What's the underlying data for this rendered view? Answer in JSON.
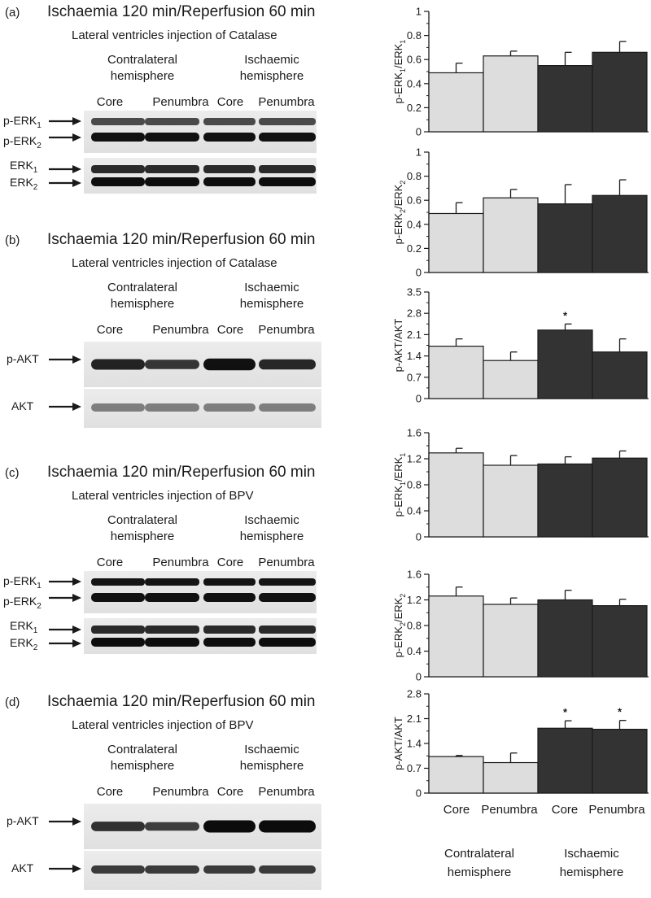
{
  "figure_panels": [
    {
      "letter": "(a)",
      "title": "Ischaemia 120 min/Reperfusion 60 min",
      "injection": "Lateral ventricles injection of Catalase",
      "blots": [
        "p-ERK1 / p-ERK2",
        "ERK1 / ERK2"
      ]
    },
    {
      "letter": "(b)",
      "title": "Ischaemia 120 min/Reperfusion 60 min",
      "injection": "Lateral ventricles injection of Catalase",
      "blots": [
        "p-AKT",
        "AKT"
      ]
    },
    {
      "letter": "(c)",
      "title": "Ischaemia 120 min/Reperfusion 60 min",
      "injection": "Lateral ventricles injection of BPV",
      "blots": [
        "p-ERK1 / p-ERK2",
        "ERK1 / ERK2"
      ]
    },
    {
      "letter": "(d)",
      "title": "Ischaemia 120 min/Reperfusion 60 min",
      "injection": "Lateral ventricles injection of BPV",
      "blots": [
        "p-AKT",
        "AKT"
      ]
    }
  ],
  "groups": {
    "contralateral": [
      "Contralateral",
      "hemisphere"
    ],
    "ischaemic": [
      "Ischaemic",
      "hemisphere"
    ]
  },
  "lanes": [
    "Core",
    "Penumbra",
    "Core",
    "Penumbra"
  ],
  "bands": {
    "p_erk": {
      "main": "p-ERK",
      "sub1": "1",
      "sub2": "2"
    },
    "erk": {
      "main": "ERK",
      "sub1": "1",
      "sub2": "2"
    },
    "p_akt": "p-AKT",
    "akt": "AKT"
  },
  "colors": {
    "contralateral_bar": "#dddddd",
    "ischaemic_bar": "#333333",
    "outline": "#1a1a1a"
  },
  "chart_data": [
    {
      "type": "bar",
      "ylabel": "p-ERK1/ERK1",
      "ylim": [
        0,
        1
      ],
      "yticks": [
        0,
        0.2,
        0.4,
        0.6,
        0.8,
        1
      ],
      "categories": [
        "Core",
        "Penumbra",
        "Core",
        "Penumbra"
      ],
      "values": [
        0.49,
        0.63,
        0.55,
        0.66
      ],
      "errors": [
        0.08,
        0.04,
        0.11,
        0.09
      ],
      "significant": [
        false,
        false,
        false,
        false
      ]
    },
    {
      "type": "bar",
      "ylabel": "p-ERK2/ERK2",
      "ylim": [
        0,
        1
      ],
      "yticks": [
        0,
        0.2,
        0.4,
        0.6,
        0.8,
        1
      ],
      "categories": [
        "Core",
        "Penumbra",
        "Core",
        "Penumbra"
      ],
      "values": [
        0.49,
        0.62,
        0.57,
        0.64
      ],
      "errors": [
        0.09,
        0.07,
        0.16,
        0.13
      ],
      "significant": [
        false,
        false,
        false,
        false
      ]
    },
    {
      "type": "bar",
      "ylabel": "p-AKT/AKT",
      "ylim": [
        0,
        3.5
      ],
      "yticks": [
        0,
        0.7,
        1.4,
        2.1,
        2.8,
        3.5
      ],
      "categories": [
        "Core",
        "Penumbra",
        "Core",
        "Penumbra"
      ],
      "values": [
        1.72,
        1.25,
        2.25,
        1.53
      ],
      "errors": [
        0.24,
        0.28,
        0.2,
        0.43
      ],
      "significant": [
        false,
        false,
        true,
        false
      ]
    },
    {
      "type": "bar",
      "ylabel": "p-ERK1/ERK1",
      "ylim": [
        0,
        1.6
      ],
      "yticks": [
        0,
        0.4,
        0.8,
        1.2,
        1.6
      ],
      "categories": [
        "Core",
        "Penumbra",
        "Core",
        "Penumbra"
      ],
      "values": [
        1.29,
        1.1,
        1.12,
        1.21
      ],
      "errors": [
        0.07,
        0.15,
        0.11,
        0.11
      ],
      "significant": [
        false,
        false,
        false,
        false
      ]
    },
    {
      "type": "bar",
      "ylabel": "p-ERK2/ERK2",
      "ylim": [
        0,
        1.6
      ],
      "yticks": [
        0,
        0.4,
        0.8,
        1.2,
        1.6
      ],
      "categories": [
        "Core",
        "Penumbra",
        "Core",
        "Penumbra"
      ],
      "values": [
        1.26,
        1.13,
        1.2,
        1.11
      ],
      "errors": [
        0.14,
        0.1,
        0.15,
        0.1
      ],
      "significant": [
        false,
        false,
        false,
        false
      ]
    },
    {
      "type": "bar",
      "ylabel": "p-AKT/AKT",
      "ylim": [
        0,
        2.8
      ],
      "yticks": [
        0,
        0.7,
        1.4,
        2.1,
        2.8
      ],
      "categories": [
        "Core",
        "Penumbra",
        "Core",
        "Penumbra"
      ],
      "values": [
        1.03,
        0.86,
        1.83,
        1.8
      ],
      "errors": [
        0.03,
        0.27,
        0.21,
        0.25
      ],
      "significant": [
        false,
        false,
        true,
        true
      ]
    }
  ],
  "x_axis": {
    "categories": [
      "Core",
      "Penumbra",
      "Core",
      "Penumbra"
    ],
    "groups": [
      [
        "Contralateral",
        "hemisphere"
      ],
      [
        "Ischaemic",
        "hemisphere"
      ]
    ]
  },
  "significance_marker": "*"
}
